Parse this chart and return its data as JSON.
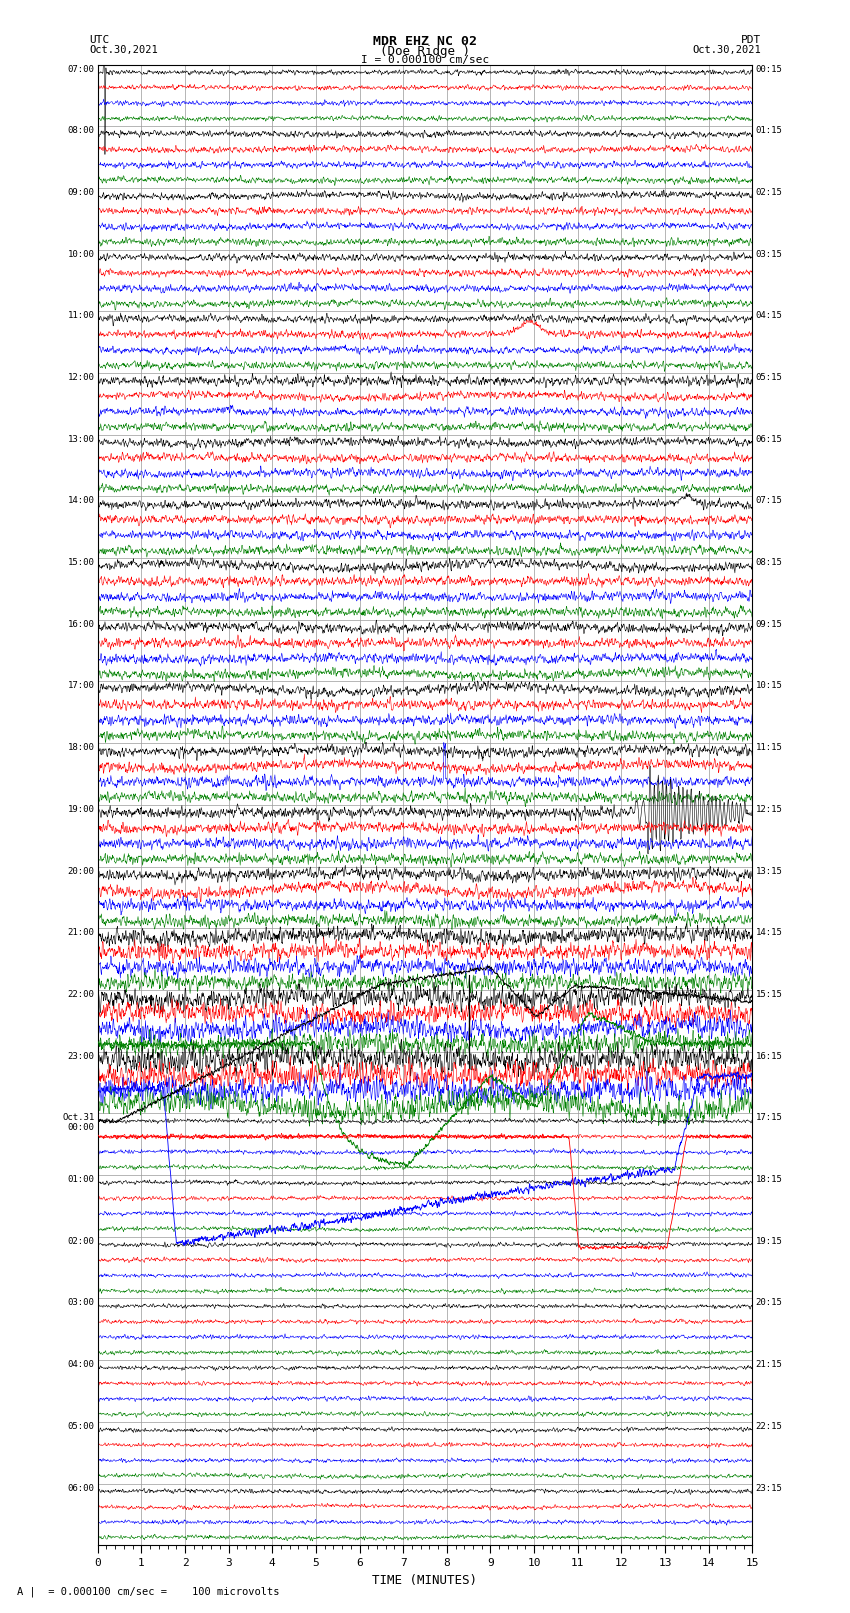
{
  "title_line1": "MDR EHZ NC 02",
  "title_line2": "(Doe Ridge )",
  "scale_text": "I = 0.000100 cm/sec",
  "label_left_line1": "UTC",
  "label_left_line2": "Oct.30,2021",
  "label_right_line1": "PDT",
  "label_right_line2": "Oct.30,2021",
  "xlabel": "TIME (MINUTES)",
  "footer": "A |  = 0.000100 cm/sec =    100 microvolts",
  "utc_times": [
    "07:00",
    "08:00",
    "09:00",
    "10:00",
    "11:00",
    "12:00",
    "13:00",
    "14:00",
    "15:00",
    "16:00",
    "17:00",
    "18:00",
    "19:00",
    "20:00",
    "21:00",
    "22:00",
    "23:00",
    "Oct.31\n00:00",
    "01:00",
    "02:00",
    "03:00",
    "04:00",
    "05:00",
    "06:00"
  ],
  "pdt_times": [
    "00:15",
    "01:15",
    "02:15",
    "03:15",
    "04:15",
    "05:15",
    "06:15",
    "07:15",
    "08:15",
    "09:15",
    "10:15",
    "11:15",
    "12:15",
    "13:15",
    "14:15",
    "15:15",
    "16:15",
    "17:15",
    "18:15",
    "19:15",
    "20:15",
    "21:15",
    "22:15",
    "23:15"
  ],
  "n_rows": 24,
  "n_traces_per_row": 4,
  "colors": [
    "black",
    "red",
    "blue",
    "green"
  ],
  "bg_color": "white",
  "x_min": 0,
  "x_max": 15,
  "x_ticks": [
    0,
    1,
    2,
    3,
    4,
    5,
    6,
    7,
    8,
    9,
    10,
    11,
    12,
    13,
    14,
    15
  ],
  "grid_color": "#999999"
}
